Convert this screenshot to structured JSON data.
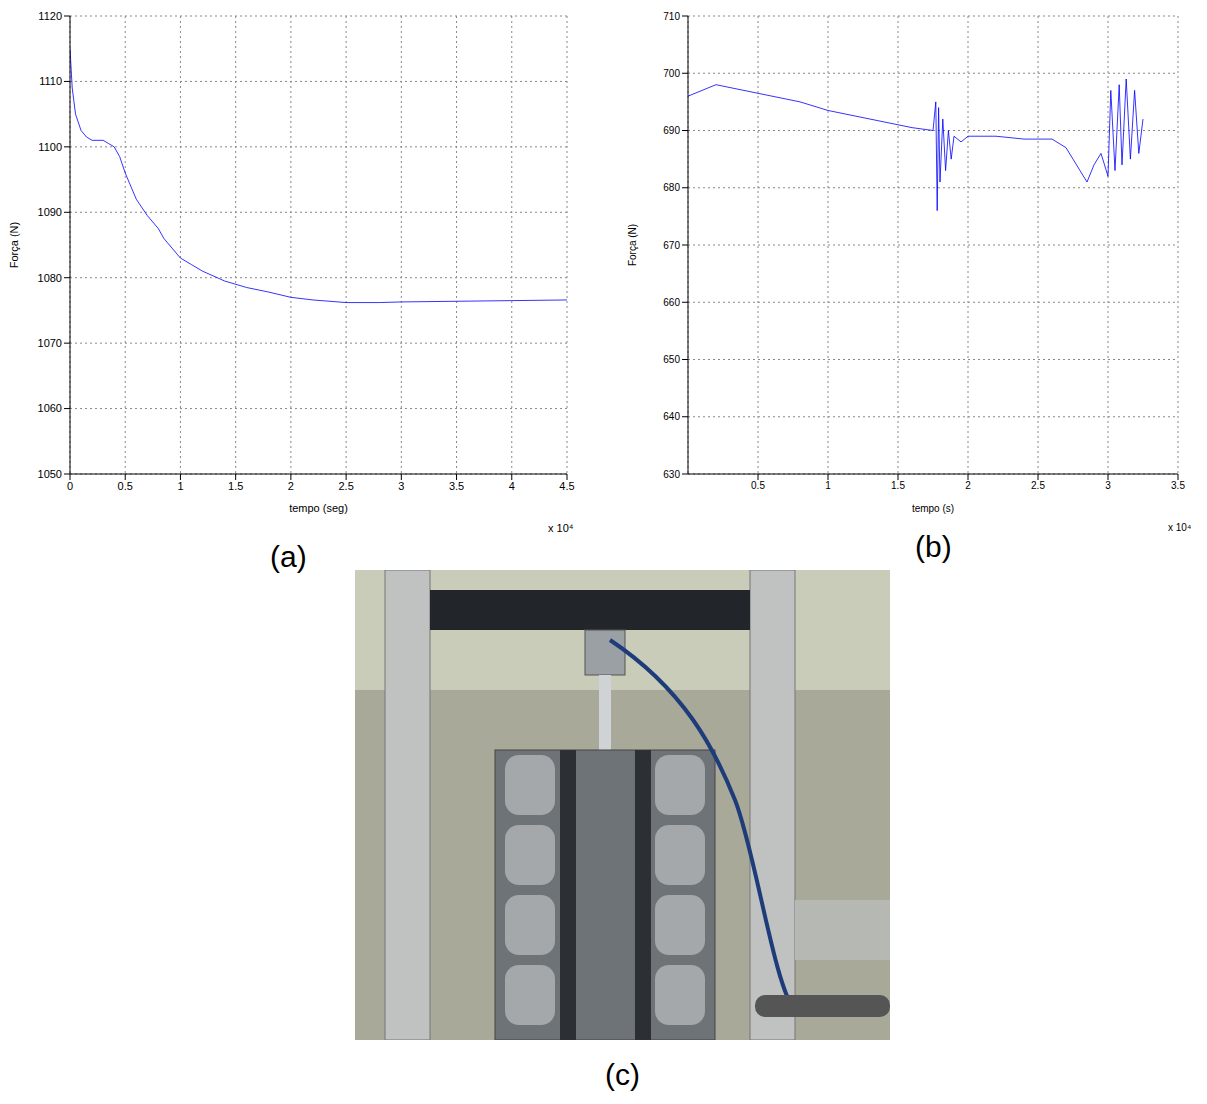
{
  "chart_data": [
    {
      "type": "line",
      "panel": "(a)",
      "x_label": "tempo (seg)",
      "y_label": "Força (N)",
      "annotation": "x 10⁴",
      "xlim": [
        0,
        4.5
      ],
      "xticks": [
        0,
        0.5,
        1,
        1.5,
        2,
        2.5,
        3,
        3.5,
        4,
        4.5
      ],
      "ylim": [
        1050,
        1120
      ],
      "yticks": [
        1050,
        1060,
        1070,
        1080,
        1090,
        1100,
        1110,
        1120
      ],
      "grid": true,
      "color": "#0000ff",
      "x": [
        0,
        0.02,
        0.05,
        0.1,
        0.15,
        0.2,
        0.3,
        0.35,
        0.4,
        0.45,
        0.5,
        0.55,
        0.6,
        0.7,
        0.75,
        0.8,
        0.85,
        0.9,
        1.0,
        1.1,
        1.2,
        1.4,
        1.6,
        1.8,
        2.0,
        2.2,
        2.5,
        2.8,
        3.0,
        3.5,
        4.0,
        4.5
      ],
      "values": [
        1115,
        1109,
        1105,
        1102.5,
        1101.5,
        1101,
        1101,
        1100.5,
        1100,
        1098.5,
        1096,
        1094,
        1092,
        1089.5,
        1088.5,
        1087.5,
        1086,
        1085,
        1083,
        1082,
        1081,
        1079.5,
        1078.5,
        1077.8,
        1077,
        1076.6,
        1076.2,
        1076.2,
        1076.3,
        1076.4,
        1076.5,
        1076.6
      ]
    },
    {
      "type": "line",
      "panel": "(b)",
      "x_label": "tempo (s)",
      "y_label": "Força (N)",
      "annotation": "x 10⁴",
      "xlim": [
        0,
        3.5
      ],
      "xticks": [
        0.5,
        1,
        1.5,
        2,
        2.5,
        3,
        3.5
      ],
      "ylim": [
        630,
        710
      ],
      "yticks": [
        630,
        640,
        650,
        660,
        670,
        680,
        690,
        700,
        710
      ],
      "grid": true,
      "color": "#0000ff",
      "x": [
        0,
        0.1,
        0.2,
        0.3,
        0.4,
        0.6,
        0.8,
        1.0,
        1.2,
        1.4,
        1.6,
        1.75,
        1.77,
        1.78,
        1.79,
        1.8,
        1.82,
        1.84,
        1.86,
        1.88,
        1.9,
        1.95,
        2.0,
        2.2,
        2.4,
        2.6,
        2.7,
        2.75,
        2.8,
        2.85,
        2.9,
        2.95,
        3.0,
        3.02,
        3.05,
        3.08,
        3.1,
        3.13,
        3.16,
        3.19,
        3.22,
        3.25
      ],
      "values": [
        696,
        697,
        698,
        697.5,
        697,
        696,
        695,
        693.5,
        692.5,
        691.5,
        690.5,
        690,
        695,
        676,
        694,
        681,
        692,
        683,
        690,
        685,
        689,
        688,
        689,
        689,
        688.5,
        688.5,
        687,
        685,
        683,
        681,
        684,
        686,
        682,
        697,
        683,
        698,
        684,
        699,
        685,
        697,
        686,
        692
      ]
    }
  ],
  "photo": {
    "label": "(c)"
  }
}
